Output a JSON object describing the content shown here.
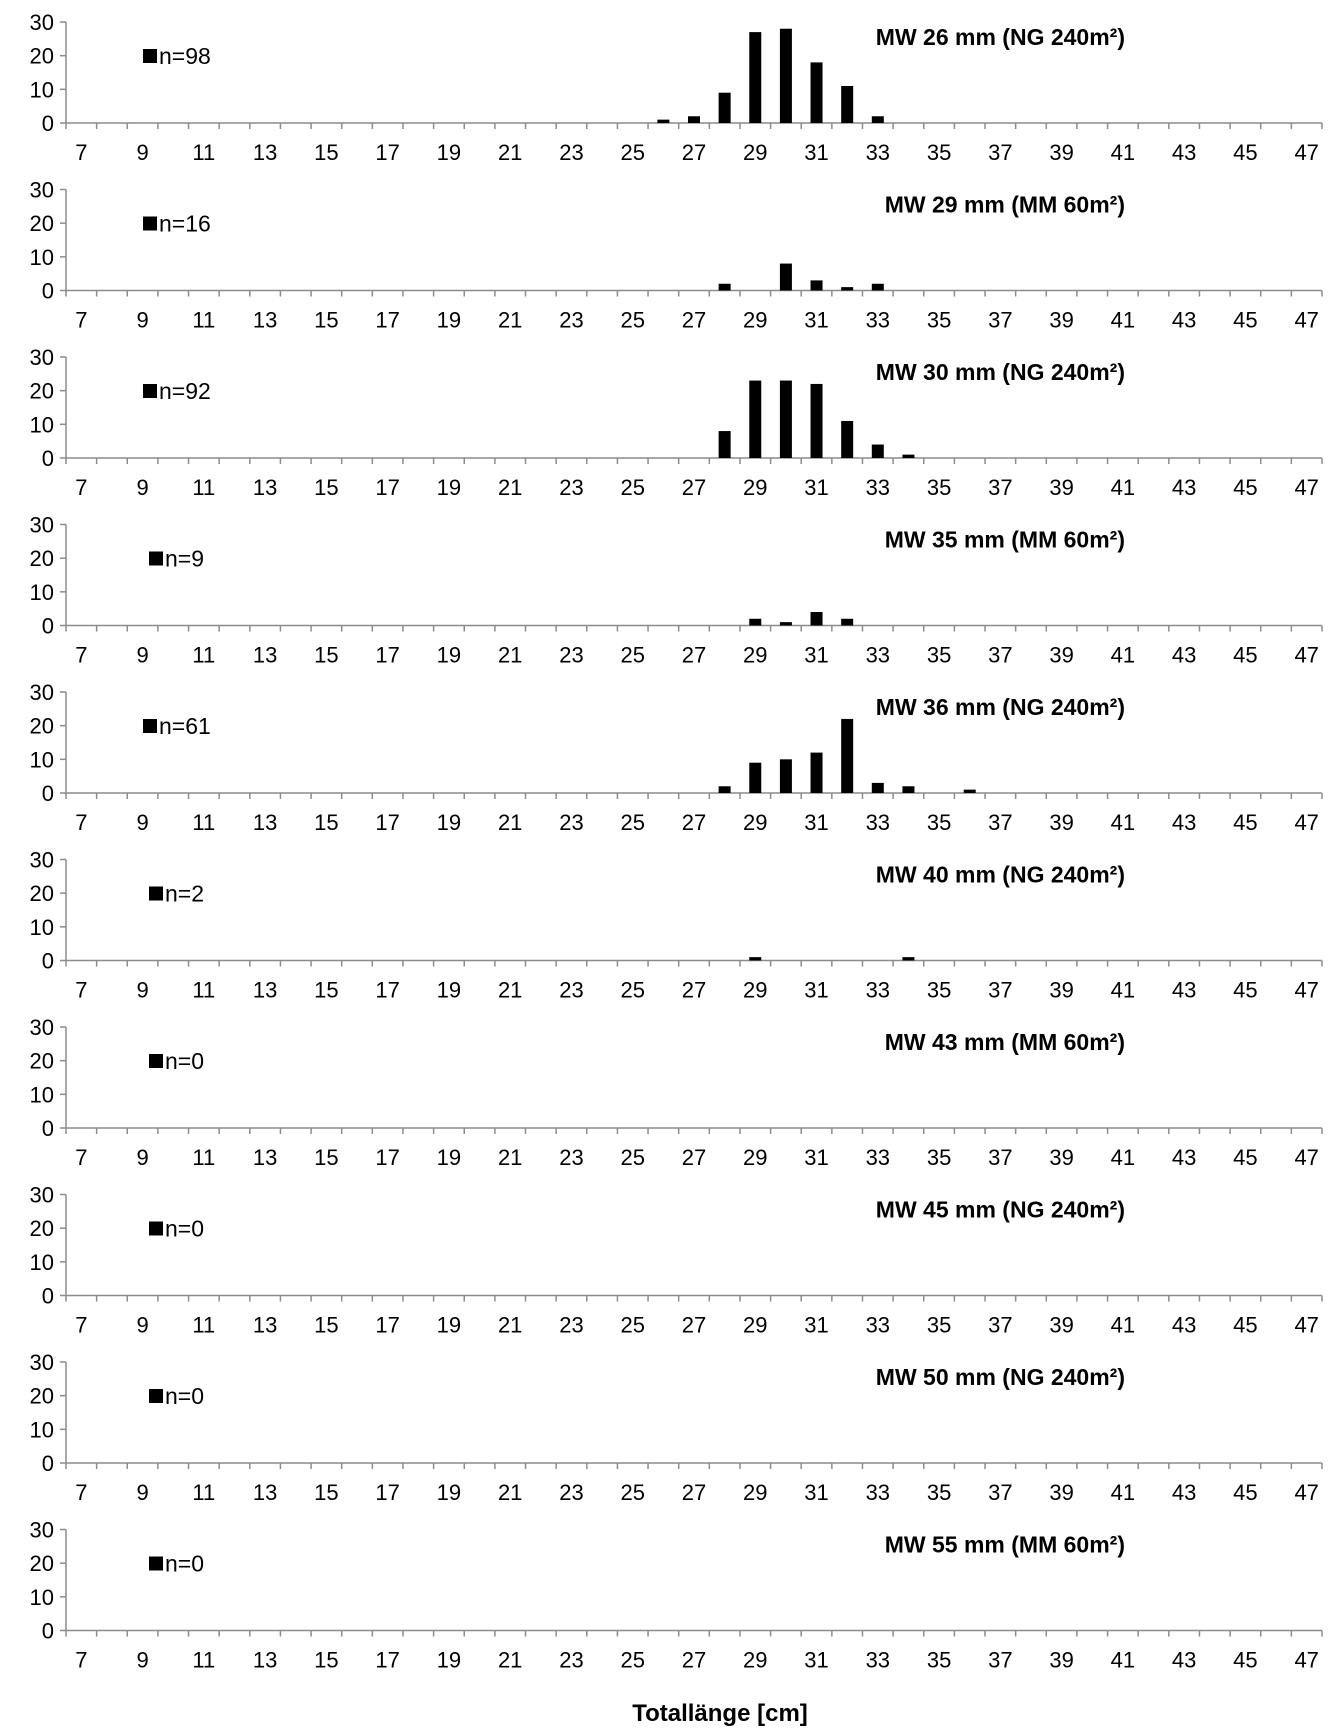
{
  "chart_data": {
    "type": "bar",
    "xlabel": "Totallänge [cm]",
    "xlim": [
      7,
      47
    ],
    "xtick_labels": [
      "7",
      "9",
      "11",
      "13",
      "15",
      "17",
      "19",
      "21",
      "23",
      "25",
      "27",
      "29",
      "31",
      "33",
      "35",
      "37",
      "39",
      "41",
      "43",
      "45",
      "47"
    ],
    "ylim": [
      0,
      30
    ],
    "ytick_labels": [
      "0",
      "10",
      "20",
      "30"
    ],
    "bar_color": "#000000",
    "panels": [
      {
        "title": "MW 26 mm (NG 240m²)",
        "legend": "n=98",
        "x": [
          26,
          27,
          28,
          29,
          30,
          31,
          32,
          33
        ],
        "values": [
          1,
          2,
          9,
          27,
          28,
          18,
          11,
          2
        ]
      },
      {
        "title": "MW 29 mm (MM 60m²)",
        "legend": "n=16",
        "x": [
          28,
          30,
          31,
          32,
          33
        ],
        "values": [
          2,
          8,
          3,
          1,
          2
        ]
      },
      {
        "title": "MW 30 mm (NG 240m²)",
        "legend": "n=92",
        "x": [
          28,
          29,
          30,
          31,
          32,
          33,
          34
        ],
        "values": [
          8,
          23,
          23,
          22,
          11,
          4,
          1
        ]
      },
      {
        "title": "MW 35 mm (MM 60m²)",
        "legend": "n=9",
        "x": [
          29,
          30,
          31,
          32
        ],
        "values": [
          2,
          1,
          4,
          2
        ]
      },
      {
        "title": "MW 36 mm (NG 240m²)",
        "legend": "n=61",
        "x": [
          28,
          29,
          30,
          31,
          32,
          33,
          34,
          36
        ],
        "values": [
          2,
          9,
          10,
          12,
          22,
          3,
          2,
          1
        ]
      },
      {
        "title": "MW 40 mm (NG 240m²)",
        "legend": "n=2",
        "x": [
          29,
          34
        ],
        "values": [
          1,
          1
        ]
      },
      {
        "title": "MW 43 mm (MM 60m²)",
        "legend": "n=0",
        "x": [],
        "values": []
      },
      {
        "title": "MW 45 mm (NG 240m²)",
        "legend": "n=0",
        "x": [],
        "values": []
      },
      {
        "title": "MW 50 mm (NG 240m²)",
        "legend": "n=0",
        "x": [],
        "values": []
      },
      {
        "title": "MW 55 mm (MM 60m²)",
        "legend": "n=0",
        "x": [],
        "values": []
      }
    ]
  }
}
